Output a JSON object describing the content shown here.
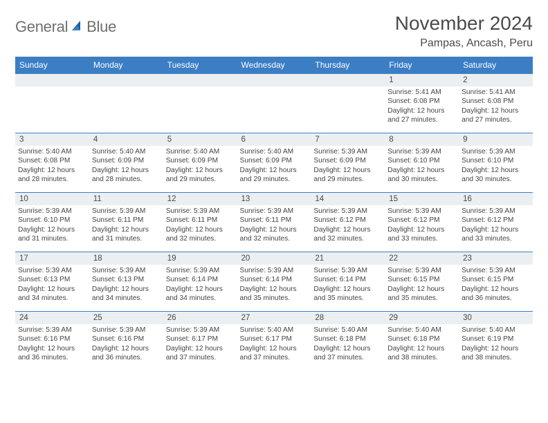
{
  "brand": {
    "part1": "General",
    "part2": "Blue"
  },
  "title": "November 2024",
  "location": "Pampas, Ancash, Peru",
  "colors": {
    "header_bg": "#3b7ec4",
    "header_fg": "#ffffff",
    "daynum_bg": "#eceff1",
    "border": "#3b7ec4",
    "text": "#444444",
    "title_color": "#4a4a4a",
    "logo_gray": "#6f6f6f",
    "logo_blue": "#3b7ec4",
    "page_bg": "#ffffff"
  },
  "weekdays": [
    "Sunday",
    "Monday",
    "Tuesday",
    "Wednesday",
    "Thursday",
    "Friday",
    "Saturday"
  ],
  "weeks": [
    [
      null,
      null,
      null,
      null,
      null,
      {
        "n": "1",
        "sr": "5:41 AM",
        "ss": "6:08 PM",
        "dl": "12 hours and 27 minutes."
      },
      {
        "n": "2",
        "sr": "5:41 AM",
        "ss": "6:08 PM",
        "dl": "12 hours and 27 minutes."
      }
    ],
    [
      {
        "n": "3",
        "sr": "5:40 AM",
        "ss": "6:08 PM",
        "dl": "12 hours and 28 minutes."
      },
      {
        "n": "4",
        "sr": "5:40 AM",
        "ss": "6:09 PM",
        "dl": "12 hours and 28 minutes."
      },
      {
        "n": "5",
        "sr": "5:40 AM",
        "ss": "6:09 PM",
        "dl": "12 hours and 29 minutes."
      },
      {
        "n": "6",
        "sr": "5:40 AM",
        "ss": "6:09 PM",
        "dl": "12 hours and 29 minutes."
      },
      {
        "n": "7",
        "sr": "5:39 AM",
        "ss": "6:09 PM",
        "dl": "12 hours and 29 minutes."
      },
      {
        "n": "8",
        "sr": "5:39 AM",
        "ss": "6:10 PM",
        "dl": "12 hours and 30 minutes."
      },
      {
        "n": "9",
        "sr": "5:39 AM",
        "ss": "6:10 PM",
        "dl": "12 hours and 30 minutes."
      }
    ],
    [
      {
        "n": "10",
        "sr": "5:39 AM",
        "ss": "6:10 PM",
        "dl": "12 hours and 31 minutes."
      },
      {
        "n": "11",
        "sr": "5:39 AM",
        "ss": "6:11 PM",
        "dl": "12 hours and 31 minutes."
      },
      {
        "n": "12",
        "sr": "5:39 AM",
        "ss": "6:11 PM",
        "dl": "12 hours and 32 minutes."
      },
      {
        "n": "13",
        "sr": "5:39 AM",
        "ss": "6:11 PM",
        "dl": "12 hours and 32 minutes."
      },
      {
        "n": "14",
        "sr": "5:39 AM",
        "ss": "6:12 PM",
        "dl": "12 hours and 32 minutes."
      },
      {
        "n": "15",
        "sr": "5:39 AM",
        "ss": "6:12 PM",
        "dl": "12 hours and 33 minutes."
      },
      {
        "n": "16",
        "sr": "5:39 AM",
        "ss": "6:12 PM",
        "dl": "12 hours and 33 minutes."
      }
    ],
    [
      {
        "n": "17",
        "sr": "5:39 AM",
        "ss": "6:13 PM",
        "dl": "12 hours and 34 minutes."
      },
      {
        "n": "18",
        "sr": "5:39 AM",
        "ss": "6:13 PM",
        "dl": "12 hours and 34 minutes."
      },
      {
        "n": "19",
        "sr": "5:39 AM",
        "ss": "6:14 PM",
        "dl": "12 hours and 34 minutes."
      },
      {
        "n": "20",
        "sr": "5:39 AM",
        "ss": "6:14 PM",
        "dl": "12 hours and 35 minutes."
      },
      {
        "n": "21",
        "sr": "5:39 AM",
        "ss": "6:14 PM",
        "dl": "12 hours and 35 minutes."
      },
      {
        "n": "22",
        "sr": "5:39 AM",
        "ss": "6:15 PM",
        "dl": "12 hours and 35 minutes."
      },
      {
        "n": "23",
        "sr": "5:39 AM",
        "ss": "6:15 PM",
        "dl": "12 hours and 36 minutes."
      }
    ],
    [
      {
        "n": "24",
        "sr": "5:39 AM",
        "ss": "6:16 PM",
        "dl": "12 hours and 36 minutes."
      },
      {
        "n": "25",
        "sr": "5:39 AM",
        "ss": "6:16 PM",
        "dl": "12 hours and 36 minutes."
      },
      {
        "n": "26",
        "sr": "5:39 AM",
        "ss": "6:17 PM",
        "dl": "12 hours and 37 minutes."
      },
      {
        "n": "27",
        "sr": "5:40 AM",
        "ss": "6:17 PM",
        "dl": "12 hours and 37 minutes."
      },
      {
        "n": "28",
        "sr": "5:40 AM",
        "ss": "6:18 PM",
        "dl": "12 hours and 37 minutes."
      },
      {
        "n": "29",
        "sr": "5:40 AM",
        "ss": "6:18 PM",
        "dl": "12 hours and 38 minutes."
      },
      {
        "n": "30",
        "sr": "5:40 AM",
        "ss": "6:19 PM",
        "dl": "12 hours and 38 minutes."
      }
    ]
  ],
  "labels": {
    "sunrise": "Sunrise:",
    "sunset": "Sunset:",
    "daylight": "Daylight:"
  }
}
